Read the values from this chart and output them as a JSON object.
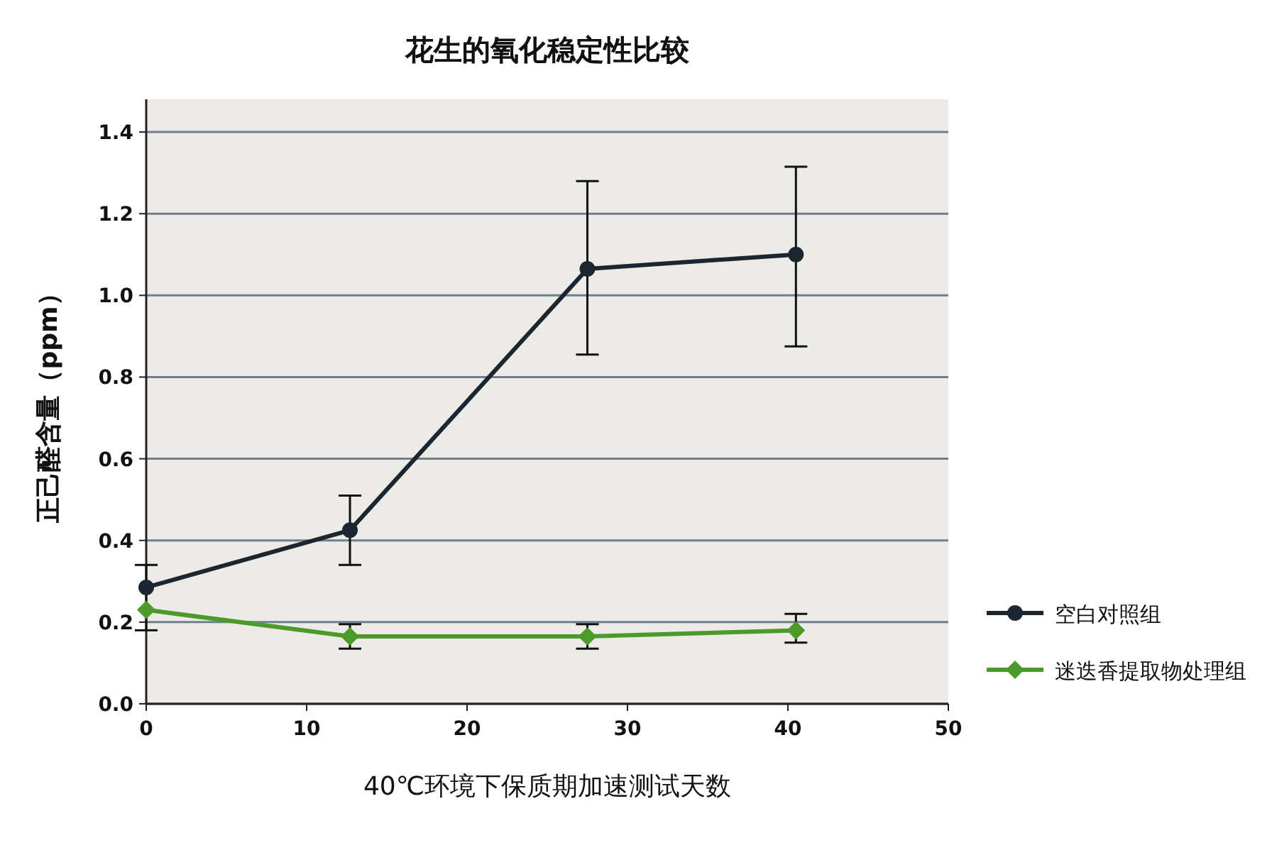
{
  "chart_data": {
    "type": "line",
    "title": "花生的氧化稳定性比较",
    "xlabel": "40℃环境下保质期加速测试天数",
    "ylabel": "正己醛含量（ppm）",
    "xlim": [
      0,
      50
    ],
    "xticks": [
      0,
      10,
      20,
      30,
      40,
      50
    ],
    "ylim": [
      0,
      1.48
    ],
    "yticks": [
      {
        "value": 0,
        "label": "0.0"
      },
      {
        "value": 0.2,
        "label": "0.2"
      },
      {
        "value": 0.4,
        "label": "0.4"
      },
      {
        "value": 0.6,
        "label": "0.6"
      },
      {
        "value": 0.8,
        "label": "0.8"
      },
      {
        "value": 1.0,
        "label": "1.0"
      },
      {
        "value": 1.2,
        "label": "1.2"
      },
      {
        "value": 1.4,
        "label": "1.4"
      }
    ],
    "grid": "y",
    "legend": "bottom right",
    "line_style": "solid",
    "series": [
      {
        "name": "空白对照组",
        "color": "#1c2630",
        "marker": "circle",
        "x": [
          0,
          12.7,
          27.5,
          40.5
        ],
        "values": [
          0.285,
          0.425,
          1.065,
          1.1
        ],
        "errors": [
          [
            0.18,
            0.34
          ],
          [
            0.34,
            0.51
          ],
          [
            0.855,
            1.28
          ],
          [
            0.875,
            1.315
          ]
        ]
      },
      {
        "name": "迷迭香提取物处理组",
        "color": "#4c9a2a",
        "marker": "diamond",
        "x": [
          0,
          12.7,
          27.5,
          40.5
        ],
        "values": [
          0.23,
          0.165,
          0.165,
          0.18
        ],
        "errors": [
          null,
          [
            0.135,
            0.195
          ],
          [
            0.135,
            0.195
          ],
          [
            0.15,
            0.22
          ]
        ]
      }
    ]
  }
}
